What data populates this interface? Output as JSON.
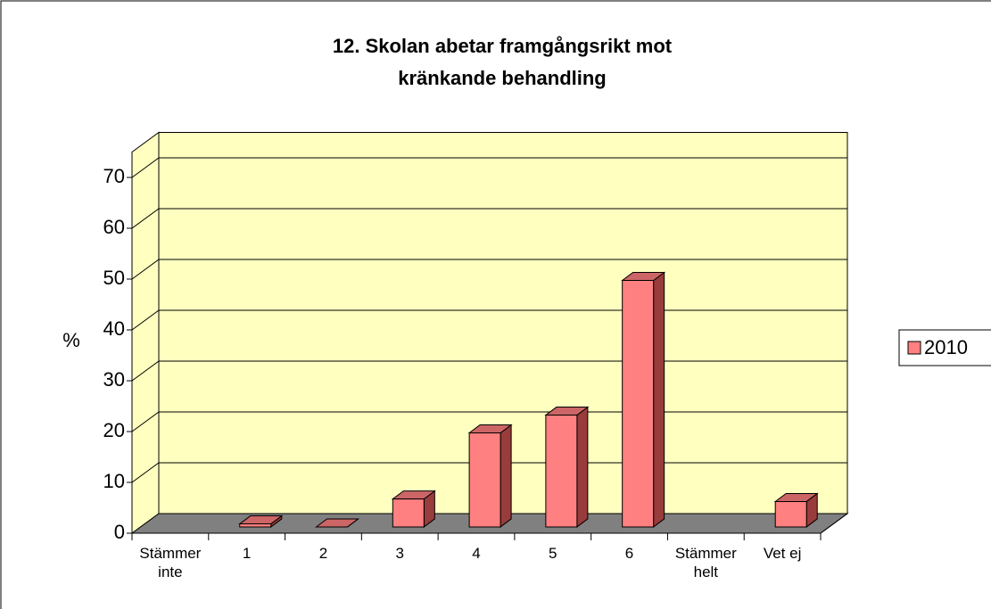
{
  "chart_data": {
    "type": "bar3d",
    "title": "12. Skolan abetar framgångsrikt mot kränkande behandling",
    "ylabel": "%",
    "categories": [
      "Stämmer inte",
      "1",
      "2",
      "3",
      "4",
      "5",
      "6",
      "Stämmer helt",
      "Vet ej"
    ],
    "series": [
      {
        "name": "2010",
        "color": "#ff8080",
        "values": [
          null,
          0.6,
          0,
          5.5,
          18.5,
          22,
          48.5,
          null,
          5
        ]
      }
    ],
    "ylim": [
      0,
      75
    ],
    "yticks": [
      0,
      10,
      20,
      30,
      40,
      50,
      60,
      70
    ],
    "grid": true,
    "legend": "right"
  }
}
